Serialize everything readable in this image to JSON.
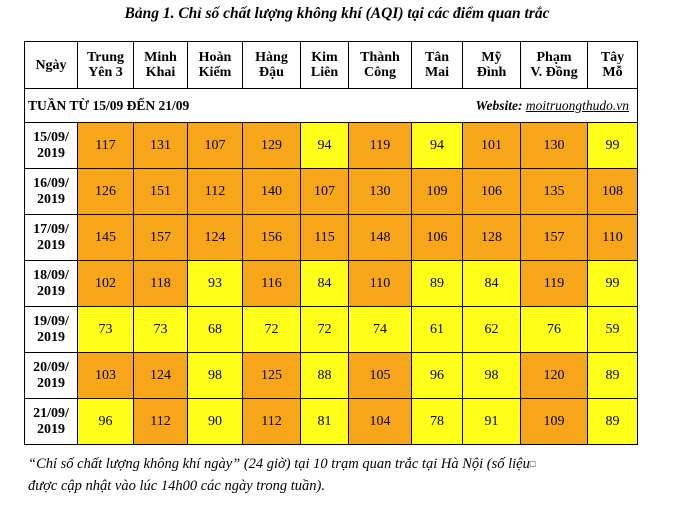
{
  "title": "Bảng 1. Chỉ số chất lượng không khí (AQI) tại các điểm quan trắc",
  "columns": [
    {
      "line1": "Ngày",
      "line2": ""
    },
    {
      "line1": "Trung",
      "line2": "Yên 3"
    },
    {
      "line1": "Minh",
      "line2": "Khai"
    },
    {
      "line1": "Hoàn",
      "line2": "Kiếm"
    },
    {
      "line1": "Hàng",
      "line2": "Đậu"
    },
    {
      "line1": "Kim",
      "line2": "Liên"
    },
    {
      "line1": "Thành",
      "line2": "Công"
    },
    {
      "line1": "Tân",
      "line2": "Mai"
    },
    {
      "line1": "Mỹ",
      "line2": "Đình"
    },
    {
      "line1": "Phạm",
      "line2": "V. Đồng"
    },
    {
      "line1": "Tây",
      "line2": "Mỗ"
    }
  ],
  "week_label": "TUẦN TỪ 15/09 ĐẾN 21/09",
  "website_label": "Website:",
  "website_link": "moitruongthudo.vn",
  "colors": {
    "orange": "#f8a619",
    "yellow": "#ffff19"
  },
  "rows": [
    {
      "date1": "15/09/",
      "date2": "2019",
      "values": [
        "117",
        "131",
        "107",
        "129",
        "94",
        "119",
        "94",
        "101",
        "130",
        "99"
      ],
      "level": [
        "o",
        "o",
        "o",
        "o",
        "y",
        "o",
        "y",
        "o",
        "o",
        "y"
      ]
    },
    {
      "date1": "16/09/",
      "date2": "2019",
      "values": [
        "126",
        "151",
        "112",
        "140",
        "107",
        "130",
        "109",
        "106",
        "135",
        "108"
      ],
      "level": [
        "o",
        "o",
        "o",
        "o",
        "o",
        "o",
        "o",
        "o",
        "o",
        "o"
      ]
    },
    {
      "date1": "17/09/",
      "date2": "2019",
      "values": [
        "145",
        "157",
        "124",
        "156",
        "115",
        "148",
        "106",
        "128",
        "157",
        "110"
      ],
      "level": [
        "o",
        "o",
        "o",
        "o",
        "o",
        "o",
        "o",
        "o",
        "o",
        "o"
      ]
    },
    {
      "date1": "18/09/",
      "date2": "2019",
      "values": [
        "102",
        "118",
        "93",
        "116",
        "84",
        "110",
        "89",
        "84",
        "119",
        "99"
      ],
      "level": [
        "o",
        "o",
        "y",
        "o",
        "y",
        "o",
        "y",
        "y",
        "o",
        "y"
      ]
    },
    {
      "date1": "19/09/",
      "date2": "2019",
      "values": [
        "73",
        "73",
        "68",
        "72",
        "72",
        "74",
        "61",
        "62",
        "76",
        "59"
      ],
      "level": [
        "y",
        "y",
        "y",
        "y",
        "y",
        "y",
        "y",
        "y",
        "y",
        "y"
      ]
    },
    {
      "date1": "20/09/",
      "date2": "2019",
      "values": [
        "103",
        "124",
        "98",
        "125",
        "88",
        "105",
        "96",
        "98",
        "120",
        "89"
      ],
      "level": [
        "o",
        "o",
        "y",
        "o",
        "y",
        "o",
        "y",
        "y",
        "o",
        "y"
      ]
    },
    {
      "date1": "21/09/",
      "date2": "2019",
      "values": [
        "96",
        "112",
        "90",
        "112",
        "81",
        "104",
        "78",
        "91",
        "109",
        "89"
      ],
      "level": [
        "y",
        "o",
        "y",
        "o",
        "y",
        "o",
        "y",
        "y",
        "o",
        "y"
      ]
    }
  ],
  "footnote": "“Chỉ số chất lượng không khí ngày” (24 giờ) tại 10 trạm quan trắc tại Hà Nội (số liệu",
  "footnote_mark": "□",
  "footnote_line2": "được cập nhật vào lúc 14h00 các ngày trong tuần)."
}
